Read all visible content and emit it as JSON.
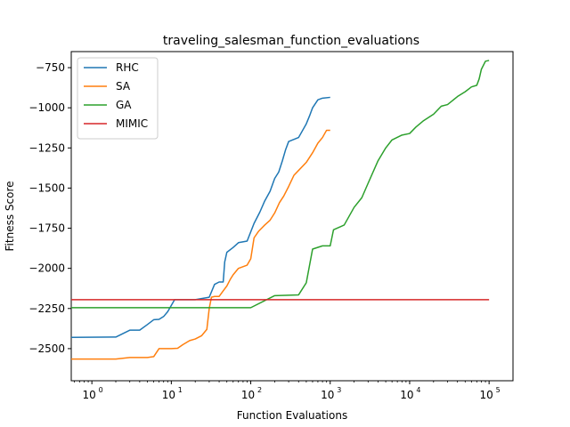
{
  "chart_data": {
    "type": "line",
    "title": "traveling_salesman_function_evaluations",
    "xlabel": "Function Evaluations",
    "ylabel": "Fitness Score",
    "xscale": "log",
    "xlim": [
      0.55,
      200000
    ],
    "ylim": [
      -2700,
      -650
    ],
    "xticks": [
      {
        "value": 1,
        "base": "10",
        "exp": "0"
      },
      {
        "value": 10,
        "base": "10",
        "exp": "1"
      },
      {
        "value": 100,
        "base": "10",
        "exp": "2"
      },
      {
        "value": 1000,
        "base": "10",
        "exp": "3"
      },
      {
        "value": 10000,
        "base": "10",
        "exp": "4"
      },
      {
        "value": 100000,
        "base": "10",
        "exp": "5"
      }
    ],
    "yticks": [
      {
        "value": -750,
        "label": "−750"
      },
      {
        "value": -1000,
        "label": "−1000"
      },
      {
        "value": -1250,
        "label": "−1250"
      },
      {
        "value": -1500,
        "label": "−1500"
      },
      {
        "value": -1750,
        "label": "−1750"
      },
      {
        "value": -2000,
        "label": "−2000"
      },
      {
        "value": -2250,
        "label": "−2250"
      },
      {
        "value": -2500,
        "label": "−2500"
      }
    ],
    "grid": false,
    "legend_position": "top-left",
    "series": [
      {
        "name": "RHC",
        "color": "#1f77b4",
        "points": [
          [
            0.5,
            -2430
          ],
          [
            2,
            -2428
          ],
          [
            3,
            -2385
          ],
          [
            4,
            -2385
          ],
          [
            5,
            -2350
          ],
          [
            6,
            -2320
          ],
          [
            7,
            -2318
          ],
          [
            8,
            -2300
          ],
          [
            9,
            -2270
          ],
          [
            11,
            -2195
          ],
          [
            20,
            -2195
          ],
          [
            30,
            -2180
          ],
          [
            35,
            -2100
          ],
          [
            40,
            -2085
          ],
          [
            45,
            -2085
          ],
          [
            47,
            -1960
          ],
          [
            50,
            -1900
          ],
          [
            60,
            -1870
          ],
          [
            70,
            -1840
          ],
          [
            90,
            -1830
          ],
          [
            110,
            -1720
          ],
          [
            130,
            -1650
          ],
          [
            150,
            -1580
          ],
          [
            175,
            -1520
          ],
          [
            200,
            -1440
          ],
          [
            225,
            -1400
          ],
          [
            250,
            -1330
          ],
          [
            275,
            -1260
          ],
          [
            300,
            -1210
          ],
          [
            400,
            -1185
          ],
          [
            500,
            -1100
          ],
          [
            550,
            -1050
          ],
          [
            600,
            -1000
          ],
          [
            700,
            -950
          ],
          [
            800,
            -940
          ],
          [
            1000,
            -935
          ]
        ]
      },
      {
        "name": "SA",
        "color": "#ff7f0e",
        "points": [
          [
            0.5,
            -2565
          ],
          [
            2,
            -2565
          ],
          [
            3,
            -2555
          ],
          [
            5,
            -2555
          ],
          [
            6,
            -2550
          ],
          [
            7,
            -2500
          ],
          [
            10,
            -2500
          ],
          [
            12,
            -2498
          ],
          [
            14,
            -2475
          ],
          [
            17,
            -2450
          ],
          [
            20,
            -2440
          ],
          [
            24,
            -2420
          ],
          [
            28,
            -2380
          ],
          [
            30,
            -2250
          ],
          [
            32,
            -2180
          ],
          [
            35,
            -2175
          ],
          [
            40,
            -2175
          ],
          [
            45,
            -2140
          ],
          [
            50,
            -2110
          ],
          [
            55,
            -2070
          ],
          [
            60,
            -2040
          ],
          [
            70,
            -2000
          ],
          [
            90,
            -1980
          ],
          [
            100,
            -1940
          ],
          [
            110,
            -1810
          ],
          [
            125,
            -1770
          ],
          [
            150,
            -1730
          ],
          [
            175,
            -1700
          ],
          [
            200,
            -1655
          ],
          [
            230,
            -1590
          ],
          [
            260,
            -1550
          ],
          [
            300,
            -1490
          ],
          [
            350,
            -1420
          ],
          [
            400,
            -1390
          ],
          [
            500,
            -1340
          ],
          [
            600,
            -1280
          ],
          [
            700,
            -1220
          ],
          [
            800,
            -1185
          ],
          [
            900,
            -1140
          ],
          [
            1000,
            -1140
          ]
        ]
      },
      {
        "name": "GA",
        "color": "#2ca02c",
        "points": [
          [
            0.5,
            -2245
          ],
          [
            100,
            -2245
          ],
          [
            200,
            -2170
          ],
          [
            400,
            -2165
          ],
          [
            500,
            -2090
          ],
          [
            600,
            -1880
          ],
          [
            800,
            -1860
          ],
          [
            1000,
            -1860
          ],
          [
            1100,
            -1760
          ],
          [
            1500,
            -1730
          ],
          [
            2000,
            -1620
          ],
          [
            2500,
            -1560
          ],
          [
            3000,
            -1470
          ],
          [
            4000,
            -1330
          ],
          [
            5000,
            -1250
          ],
          [
            6000,
            -1200
          ],
          [
            8000,
            -1170
          ],
          [
            10000,
            -1160
          ],
          [
            12000,
            -1120
          ],
          [
            15000,
            -1080
          ],
          [
            20000,
            -1040
          ],
          [
            25000,
            -990
          ],
          [
            30000,
            -980
          ],
          [
            40000,
            -930
          ],
          [
            50000,
            -900
          ],
          [
            60000,
            -870
          ],
          [
            70000,
            -860
          ],
          [
            75000,
            -820
          ],
          [
            80000,
            -760
          ],
          [
            90000,
            -710
          ],
          [
            100000,
            -705
          ]
        ]
      },
      {
        "name": "MIMIC",
        "color": "#d62728",
        "points": [
          [
            0.5,
            -2195
          ],
          [
            100000,
            -2195
          ]
        ]
      }
    ]
  }
}
